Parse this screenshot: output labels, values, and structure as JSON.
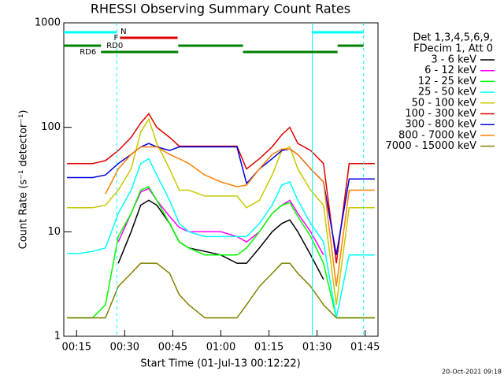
{
  "chart_data": {
    "type": "line",
    "title": "RHESSI Observing Summary Count Rates",
    "x_label": "Start Time (01-Jul-13 00:12:22)",
    "y_label": "Count Rate (s⁻¹ detector⁻¹)",
    "legend_title": [
      "Det 1,3,4,5,6,9,",
      "FDecim 1, Att 0"
    ],
    "timestamp": "20-Oct-2021 09:18",
    "log_y": true,
    "xlim": [
      11,
      109
    ],
    "ylim": [
      1,
      1000
    ],
    "xticks": [
      {
        "value": 15,
        "label": "00:15"
      },
      {
        "value": 30,
        "label": "00:30"
      },
      {
        "value": 45,
        "label": "00:45"
      },
      {
        "value": 60,
        "label": "01:00"
      },
      {
        "value": 75,
        "label": "01:15"
      },
      {
        "value": 90,
        "label": "01:30"
      },
      {
        "value": 105,
        "label": "01:45"
      }
    ],
    "yticks": [
      1,
      10,
      100,
      1000
    ],
    "x": [
      12,
      16,
      20,
      24,
      28,
      32,
      35,
      37.5,
      40,
      44,
      47,
      50,
      55,
      60,
      65,
      68,
      72,
      76,
      79,
      81.5,
      84,
      88,
      92,
      96,
      100,
      104,
      108
    ],
    "series": [
      {
        "name": "3 - 6 keV",
        "color": "#000000",
        "values": [
          null,
          null,
          null,
          null,
          5,
          10,
          18,
          20,
          18,
          12,
          8,
          7,
          6.5,
          6,
          5,
          5,
          7,
          10,
          12,
          13,
          10,
          6,
          3.5,
          null,
          null,
          null,
          null
        ]
      },
      {
        "name": "6 - 12 keV",
        "color": "#ff00ff",
        "values": [
          null,
          null,
          null,
          null,
          8,
          15,
          24,
          26,
          20,
          14,
          11,
          10,
          10,
          10,
          9,
          8,
          10,
          15,
          18,
          20,
          15,
          10,
          6,
          null,
          null,
          null,
          null
        ]
      },
      {
        "name": "12 - 25 keV",
        "color": "#00ff00",
        "values": [
          1.5,
          1.5,
          1.5,
          2,
          9,
          15,
          25,
          27,
          20,
          12,
          8,
          7,
          6,
          6,
          6,
          7,
          10,
          15,
          18,
          19,
          14,
          9,
          5,
          1.5,
          1.5,
          1.5,
          1.5
        ]
      },
      {
        "name": "25 - 50 keV",
        "color": "#00ffff",
        "values": [
          6.2,
          6.2,
          6.5,
          7,
          15,
          25,
          45,
          50,
          35,
          20,
          12,
          10,
          9,
          9,
          9,
          9,
          12,
          18,
          28,
          30,
          20,
          12,
          8,
          1.5,
          6,
          6,
          6
        ]
      },
      {
        "name": "50 - 100 keV",
        "color": "#c8c800",
        "values": [
          17,
          17,
          17,
          18,
          25,
          40,
          90,
          120,
          70,
          40,
          25,
          25,
          22,
          22,
          22,
          17,
          20,
          35,
          60,
          65,
          40,
          25,
          18,
          2,
          17,
          17,
          17
        ]
      },
      {
        "name": "100 - 300 keV",
        "color": "#e00000",
        "values": [
          45,
          45,
          45,
          48,
          60,
          80,
          110,
          135,
          100,
          80,
          66,
          66,
          66,
          66,
          66,
          40,
          50,
          65,
          85,
          100,
          70,
          60,
          45,
          5,
          45,
          45,
          45
        ]
      },
      {
        "name": "300 - 800 keV",
        "color": "#0000e0",
        "values": [
          33,
          33,
          33,
          35,
          45,
          55,
          65,
          70,
          65,
          60,
          65,
          65,
          65,
          65,
          65,
          29,
          40,
          50,
          60,
          62,
          55,
          40,
          30,
          6,
          32,
          32,
          32
        ]
      },
      {
        "name": "800 - 7000 keV",
        "color": "#ff8000",
        "values": [
          null,
          null,
          null,
          23,
          40,
          55,
          65,
          65,
          65,
          55,
          50,
          45,
          35,
          30,
          27,
          28,
          40,
          55,
          62,
          62,
          55,
          40,
          30,
          3,
          25,
          25,
          25
        ]
      },
      {
        "name": "7000 - 15000 keV",
        "color": "#808000",
        "values": [
          1.5,
          1.5,
          1.5,
          1.5,
          3,
          4,
          5,
          5,
          5,
          4,
          2.5,
          2,
          1.5,
          1.5,
          1.5,
          2,
          3,
          4,
          5,
          5,
          4,
          3,
          2,
          1.5,
          1.5,
          1.5,
          1.5
        ]
      }
    ],
    "flags": [
      {
        "label": "N",
        "color": "#00ffff",
        "intervals": [
          [
            11,
            27.5
          ],
          [
            88.5,
            104.5
          ]
        ]
      },
      {
        "label": "F",
        "color": "#e00000",
        "intervals": [
          [
            28.5,
            46.5
          ]
        ]
      },
      {
        "label": "RD0",
        "color": "#008000",
        "intervals": [
          [
            11,
            22.6
          ],
          [
            46.7,
            66.9
          ],
          [
            96.4,
            104.5
          ]
        ]
      },
      {
        "label": "RD6",
        "color": "#008000",
        "intervals": [
          [
            22.6,
            46.7
          ],
          [
            66.9,
            96.4
          ]
        ]
      }
    ],
    "solid_markers": [
      88.5
    ],
    "dashed_markers": [
      27.5,
      104.5
    ]
  }
}
